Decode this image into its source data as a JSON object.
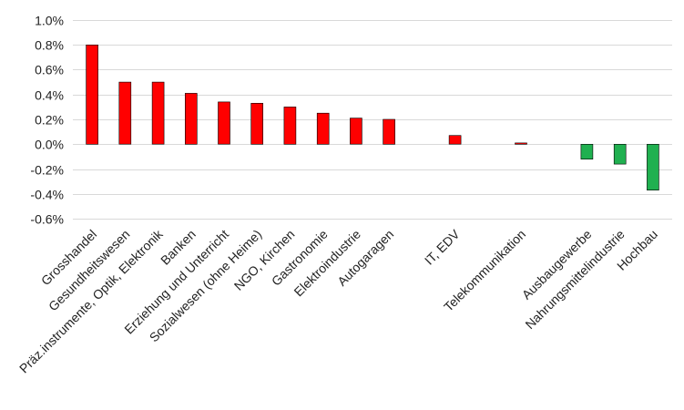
{
  "chart_data": {
    "type": "bar",
    "categories": [
      "Grosshandel",
      "Gesundheitswesen",
      "Präz.instrumente, Optik, Elektronik",
      "Banken",
      "Erziehung und Unterricht",
      "Sozialwesen (ohne Heime)",
      "NGO, Kirchen",
      "Gastronomie",
      "Elektroindustrie",
      "Autogaragen",
      "",
      "IT, EDV",
      "",
      "Telekommunikation",
      "",
      "Ausbaugewerbe",
      "Nahrungsmittelindustrie",
      "Hochbau"
    ],
    "values": [
      0.8,
      0.5,
      0.5,
      0.41,
      0.34,
      0.33,
      0.3,
      0.25,
      0.21,
      0.2,
      null,
      0.07,
      null,
      0.01,
      null,
      -0.12,
      -0.16,
      -0.37
    ],
    "value_unit": "%",
    "yticks": [
      "-0.6%",
      "-0.4%",
      "-0.2%",
      "0.0%",
      "0.2%",
      "0.4%",
      "0.6%",
      "0.8%",
      "1.0%"
    ],
    "ylim": [
      -0.6,
      1.0
    ],
    "grid": true,
    "legend": "none",
    "colors": {
      "positive": "#ff0000",
      "negative": "#20b050",
      "grid": "#d9d9d9",
      "text": "#222222"
    }
  }
}
